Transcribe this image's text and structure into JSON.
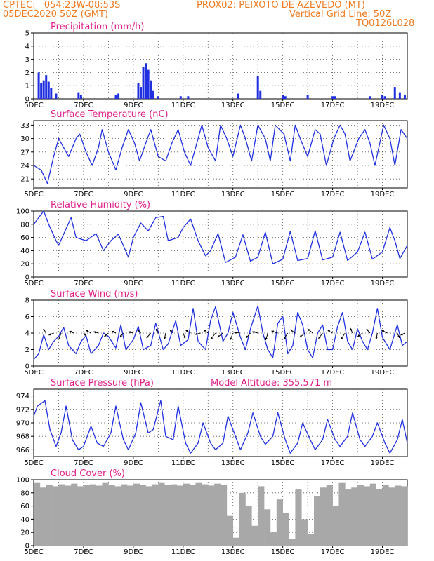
{
  "header": {
    "line1_left": "CPTEC:   054:23W-08:53S",
    "line1_right": "PROX02: PEIXOTO DE AZEVEDO (MT)",
    "line2_left": "05DEC2020 50Z (GMT)",
    "line2_right": "Vertical Grid Line: 50Z",
    "line3_right": "TQ0126L028"
  },
  "colors": {
    "header": "#f07a20",
    "title": "#e0208a",
    "line": "#2030e0",
    "cloud": "#a8a8a8",
    "bar": "#2030e0"
  },
  "chart_data": [
    {
      "type": "bar",
      "name": "precipitation",
      "title": "Precipitation (mm/h)",
      "ylim": [
        0,
        5
      ],
      "yticks": [
        0,
        1,
        2,
        3,
        4,
        5
      ],
      "xlim": [
        0,
        15
      ],
      "x_tick_positions": [
        0,
        2,
        4,
        6,
        8,
        10,
        12,
        14
      ],
      "x_tick_labels": [
        "5DEC",
        "7DEC",
        "9DEC",
        "11DEC",
        "13DEC",
        "15DEC",
        "17DEC",
        "19DEC"
      ],
      "x": [
        0.2,
        0.3,
        0.4,
        0.5,
        0.6,
        0.7,
        0.9,
        1.8,
        1.9,
        3.3,
        3.4,
        4.2,
        4.3,
        4.4,
        4.5,
        4.6,
        4.7,
        4.8,
        5.0,
        5.9,
        6.2,
        8.2,
        9.0,
        9.1,
        10.0,
        10.1,
        11.0,
        12.0,
        12.1,
        13.5,
        14.0,
        14.1,
        14.5,
        14.7,
        14.9
      ],
      "values": [
        2.0,
        1.2,
        1.4,
        1.8,
        1.3,
        0.8,
        0.4,
        0.5,
        0.3,
        0.3,
        0.4,
        1.2,
        0.9,
        2.4,
        2.7,
        2.2,
        1.4,
        0.6,
        0.2,
        0.2,
        0.2,
        0.4,
        1.7,
        0.6,
        0.3,
        0.2,
        0.3,
        0.2,
        0.2,
        0.2,
        0.3,
        0.2,
        0.9,
        0.5,
        0.3
      ]
    },
    {
      "type": "line",
      "name": "temperature",
      "title": "Surface Temperature (nC)",
      "ylim": [
        19,
        34
      ],
      "yticks": [
        21,
        24,
        27,
        30,
        33
      ],
      "xlim": [
        0,
        15
      ],
      "x_tick_positions": [
        0,
        2,
        4,
        6,
        8,
        10,
        12,
        14
      ],
      "x_tick_labels": [
        "5DEC",
        "7DEC",
        "9DEC",
        "11DEC",
        "13DEC",
        "15DEC",
        "17DEC",
        "19DEC"
      ],
      "x": [
        0,
        0.3,
        0.55,
        0.8,
        1.0,
        1.2,
        1.4,
        1.7,
        1.85,
        2.1,
        2.35,
        2.6,
        2.75,
        3.0,
        3.3,
        3.55,
        3.8,
        4.05,
        4.25,
        4.5,
        4.7,
        5.0,
        5.3,
        5.55,
        5.8,
        6.05,
        6.3,
        6.55,
        6.75,
        7.0,
        7.3,
        7.5,
        7.75,
        8.0,
        8.3,
        8.5,
        8.75,
        9.0,
        9.3,
        9.5,
        9.7,
        10.05,
        10.3,
        10.5,
        10.7,
        11.0,
        11.3,
        11.5,
        11.75,
        12.05,
        12.3,
        12.5,
        12.7,
        13.05,
        13.3,
        13.5,
        13.7,
        14.05,
        14.3,
        14.5,
        14.75,
        15.0
      ],
      "values": [
        24,
        23,
        20,
        26,
        30,
        28,
        26,
        30,
        31,
        27,
        24,
        28,
        32,
        27,
        23,
        28,
        32,
        29,
        25,
        29,
        32,
        26,
        25,
        29,
        32,
        27,
        24,
        29,
        33,
        28,
        25,
        33,
        30,
        26,
        33,
        30,
        25,
        33,
        30,
        25,
        33,
        31,
        25,
        33,
        30,
        26,
        32,
        31,
        24,
        30,
        33,
        31,
        25,
        30,
        32,
        29,
        24,
        33,
        30,
        24,
        32,
        30
      ]
    },
    {
      "type": "line",
      "name": "relative_humidity",
      "title": "Relative Humidity (%)",
      "ylim": [
        0,
        100
      ],
      "yticks": [
        0,
        20,
        40,
        60,
        80,
        100
      ],
      "xlim": [
        0,
        15
      ],
      "x_tick_positions": [
        0,
        2,
        4,
        6,
        8,
        10,
        12,
        14
      ],
      "x_tick_labels": [
        "5DEC",
        "7DEC",
        "9DEC",
        "11DEC",
        "13DEC",
        "15DEC",
        "17DEC",
        "19DEC"
      ],
      "x": [
        0,
        0.2,
        0.4,
        0.6,
        0.9,
        1.0,
        1.2,
        1.5,
        1.7,
        2.1,
        2.5,
        2.8,
        3.1,
        3.4,
        3.8,
        4.0,
        4.3,
        4.6,
        4.9,
        5.2,
        5.4,
        5.8,
        6.0,
        6.3,
        6.6,
        6.9,
        7.1,
        7.4,
        7.7,
        8.1,
        8.4,
        8.7,
        9.0,
        9.3,
        9.6,
        10.0,
        10.3,
        10.6,
        11.0,
        11.3,
        11.6,
        12.0,
        12.3,
        12.6,
        13.0,
        13.3,
        13.6,
        14.0,
        14.3,
        14.5,
        14.7,
        15.0
      ],
      "values": [
        80,
        90,
        100,
        80,
        55,
        48,
        65,
        90,
        60,
        55,
        66,
        40,
        55,
        65,
        30,
        60,
        82,
        70,
        90,
        92,
        55,
        60,
        75,
        88,
        55,
        32,
        40,
        66,
        22,
        30,
        64,
        24,
        30,
        68,
        20,
        27,
        69,
        25,
        28,
        70,
        26,
        30,
        68,
        25,
        38,
        68,
        27,
        38,
        75,
        55,
        28,
        48
      ]
    },
    {
      "type": "line",
      "name": "surface_wind",
      "title": "Surface Wind (m/s)",
      "ylim": [
        0,
        8
      ],
      "yticks": [
        0,
        2,
        4,
        6,
        8
      ],
      "xlim": [
        0,
        15
      ],
      "x_tick_positions": [
        0,
        2,
        4,
        6,
        8,
        10,
        12,
        14
      ],
      "x_tick_labels": [
        "5DEC",
        "7DEC",
        "9DEC",
        "11DEC",
        "13DEC",
        "15DEC",
        "17DEC",
        "19DEC"
      ],
      "x": [
        0,
        0.2,
        0.4,
        0.6,
        0.8,
        1.0,
        1.2,
        1.4,
        1.7,
        1.9,
        2.1,
        2.3,
        2.6,
        2.8,
        3.0,
        3.3,
        3.5,
        3.7,
        4.0,
        4.2,
        4.4,
        4.7,
        4.9,
        5.2,
        5.4,
        5.7,
        5.9,
        6.2,
        6.4,
        6.6,
        6.9,
        7.1,
        7.3,
        7.6,
        7.8,
        8.0,
        8.3,
        8.5,
        8.7,
        9.0,
        9.2,
        9.4,
        9.6,
        9.8,
        10.0,
        10.2,
        10.4,
        10.6,
        10.8,
        11.0,
        11.2,
        11.4,
        11.6,
        11.8,
        12.0,
        12.2,
        12.4,
        12.6,
        12.8,
        13.0,
        13.2,
        13.4,
        13.6,
        13.8,
        14.0,
        14.3,
        14.6,
        14.8,
        15.0
      ],
      "values": [
        0.8,
        1.5,
        3.8,
        2.0,
        3.0,
        3.6,
        4.7,
        2.5,
        1.5,
        3.0,
        3.7,
        1.5,
        2.5,
        4.0,
        3.6,
        2.2,
        5.0,
        2.0,
        3.2,
        4.8,
        2.0,
        2.5,
        5.2,
        2.0,
        2.7,
        5.5,
        2.5,
        3.2,
        7.0,
        3.0,
        2.0,
        5.5,
        7.2,
        3.0,
        4.0,
        6.5,
        3.5,
        2.0,
        4.5,
        7.3,
        4.0,
        2.0,
        1.0,
        5.2,
        6.0,
        1.5,
        2.5,
        6.5,
        5.0,
        2.0,
        1.0,
        4.0,
        5.0,
        2.0,
        2.0,
        4.8,
        6.5,
        3.0,
        2.0,
        4.5,
        3.0,
        2.0,
        4.0,
        7.0,
        3.5,
        2.0,
        5.0,
        2.5,
        3.0
      ],
      "arrows": [
        {
          "x": 0.5,
          "u": -0.4,
          "v": 0.6
        },
        {
          "x": 0.8,
          "u": -0.7,
          "v": -0.3
        },
        {
          "x": 1.1,
          "u": -0.3,
          "v": -0.8
        },
        {
          "x": 1.6,
          "u": -0.6,
          "v": 0.3
        },
        {
          "x": 2.0,
          "u": 0.4,
          "v": -0.4
        },
        {
          "x": 2.3,
          "u": -0.7,
          "v": 0.4
        },
        {
          "x": 2.6,
          "u": -0.7,
          "v": 0.2
        },
        {
          "x": 3.0,
          "u": -0.6,
          "v": -0.5
        },
        {
          "x": 3.3,
          "u": -0.6,
          "v": 0.3
        },
        {
          "x": 3.6,
          "u": -0.5,
          "v": -0.6
        },
        {
          "x": 4.0,
          "u": -0.7,
          "v": 0.2
        },
        {
          "x": 4.3,
          "u": -0.5,
          "v": 0.5
        },
        {
          "x": 4.7,
          "u": -0.6,
          "v": -0.7
        },
        {
          "x": 5.0,
          "u": -0.3,
          "v": 0.6
        },
        {
          "x": 5.3,
          "u": -0.2,
          "v": -0.9
        },
        {
          "x": 5.6,
          "u": -0.5,
          "v": 0.5
        },
        {
          "x": 6.0,
          "u": 0.3,
          "v": -0.8
        },
        {
          "x": 6.3,
          "u": -0.7,
          "v": 0.4
        },
        {
          "x": 6.7,
          "u": -0.8,
          "v": -0.2
        },
        {
          "x": 7.0,
          "u": -0.6,
          "v": 0.5
        },
        {
          "x": 7.3,
          "u": -0.7,
          "v": -0.9
        },
        {
          "x": 7.6,
          "u": -0.8,
          "v": -0.6
        },
        {
          "x": 8.0,
          "u": -0.4,
          "v": -1.0
        },
        {
          "x": 8.3,
          "u": -0.9,
          "v": 0.1
        },
        {
          "x": 8.7,
          "u": -0.6,
          "v": -0.7
        },
        {
          "x": 9.0,
          "u": -0.8,
          "v": 0.2
        },
        {
          "x": 9.4,
          "u": -0.3,
          "v": -1.0
        },
        {
          "x": 9.8,
          "u": -0.9,
          "v": 0.3
        },
        {
          "x": 10.2,
          "u": -0.6,
          "v": -0.9
        },
        {
          "x": 10.5,
          "u": -0.7,
          "v": 0.5
        },
        {
          "x": 10.9,
          "u": -0.8,
          "v": -0.6
        },
        {
          "x": 11.2,
          "u": -0.7,
          "v": 0.6
        },
        {
          "x": 11.6,
          "u": -0.6,
          "v": -0.8
        },
        {
          "x": 12.0,
          "u": -0.7,
          "v": 0.4
        },
        {
          "x": 12.5,
          "u": -0.6,
          "v": -0.9
        },
        {
          "x": 12.8,
          "u": -0.3,
          "v": 0.7
        },
        {
          "x": 13.2,
          "u": -0.7,
          "v": -0.5
        },
        {
          "x": 13.5,
          "u": -0.5,
          "v": 0.6
        },
        {
          "x": 13.8,
          "u": -0.2,
          "v": -0.9
        },
        {
          "x": 14.2,
          "u": -0.8,
          "v": 0.4
        },
        {
          "x": 14.6,
          "u": 0.3,
          "v": -0.7
        },
        {
          "x": 14.9,
          "u": -0.6,
          "v": -0.3
        }
      ]
    },
    {
      "type": "line",
      "name": "surface_pressure",
      "title": "Surface Pressure (hPa)",
      "annotation": "Model Altitude: 355.571  m",
      "ylim": [
        965,
        975
      ],
      "yticks": [
        966,
        968,
        970,
        972,
        974
      ],
      "xlim": [
        0,
        15
      ],
      "x_tick_positions": [
        0,
        2,
        4,
        6,
        8,
        10,
        12,
        14
      ],
      "x_tick_labels": [
        "5DEC",
        "7DEC",
        "9DEC",
        "11DEC",
        "13DEC",
        "15DEC",
        "17DEC",
        "19DEC"
      ],
      "x": [
        0,
        0.15,
        0.45,
        0.65,
        0.9,
        1.1,
        1.3,
        1.55,
        1.8,
        2.0,
        2.3,
        2.55,
        2.8,
        3.1,
        3.3,
        3.6,
        3.8,
        4.1,
        4.3,
        4.6,
        4.8,
        5.1,
        5.3,
        5.6,
        5.8,
        6.1,
        6.3,
        6.6,
        6.8,
        7.1,
        7.3,
        7.6,
        7.8,
        8.1,
        8.3,
        8.6,
        8.8,
        9.1,
        9.3,
        9.6,
        9.8,
        10.1,
        10.3,
        10.6,
        10.8,
        11.1,
        11.3,
        11.6,
        11.8,
        12.1,
        12.3,
        12.6,
        12.8,
        13.1,
        13.3,
        13.6,
        13.8,
        14.1,
        14.3,
        14.6,
        14.8,
        15.0
      ],
      "values": [
        971,
        972.5,
        973.3,
        969,
        966.5,
        968.5,
        972.5,
        967.5,
        966,
        966.5,
        969.5,
        967,
        966.5,
        968.5,
        972.5,
        967.5,
        966,
        968.5,
        973,
        968.5,
        969,
        973.3,
        968,
        967.5,
        972.5,
        967,
        965.5,
        967,
        970,
        967,
        966,
        967,
        971,
        968,
        966,
        968.5,
        971.5,
        968,
        966.8,
        968,
        971.5,
        967.5,
        965.5,
        967,
        970,
        967.5,
        966,
        967.5,
        970.5,
        967.5,
        966.5,
        968,
        971.5,
        967.5,
        966.5,
        968,
        970,
        967,
        965.5,
        967.5,
        970.5,
        967
      ]
    },
    {
      "type": "bar",
      "name": "cloud_cover",
      "title": "Cloud Cover (%)",
      "ylim": [
        0,
        100
      ],
      "yticks": [
        0,
        20,
        40,
        60,
        80,
        100
      ],
      "xlim": [
        0,
        15
      ],
      "x_tick_positions": [
        0,
        2,
        4,
        6,
        8,
        10,
        12,
        14
      ],
      "x_tick_labels": [
        "5DEC",
        "7DEC",
        "9DEC",
        "11DEC",
        "13DEC",
        "15DEC",
        "17DEC",
        "19DEC"
      ],
      "x": [
        0.0,
        0.25,
        0.5,
        0.75,
        1.0,
        1.25,
        1.5,
        1.75,
        2.0,
        2.25,
        2.5,
        2.75,
        3.0,
        3.25,
        3.5,
        3.75,
        4.0,
        4.25,
        4.5,
        4.75,
        5.0,
        5.25,
        5.5,
        5.75,
        6.0,
        6.25,
        6.5,
        6.75,
        7.0,
        7.25,
        7.5,
        7.75,
        8.0,
        8.25,
        8.5,
        8.75,
        9.0,
        9.25,
        9.5,
        9.75,
        10.0,
        10.25,
        10.5,
        10.75,
        11.0,
        11.25,
        11.5,
        11.75,
        12.0,
        12.25,
        12.5,
        12.75,
        13.0,
        13.25,
        13.5,
        13.75,
        14.0,
        14.25,
        14.5,
        14.75
      ],
      "values": [
        95,
        88,
        92,
        90,
        93,
        91,
        94,
        90,
        92,
        93,
        91,
        95,
        92,
        90,
        93,
        91,
        94,
        92,
        90,
        93,
        95,
        92,
        93,
        91,
        94,
        92,
        95,
        93,
        91,
        94,
        92,
        45,
        12,
        80,
        60,
        30,
        90,
        55,
        20,
        70,
        50,
        10,
        85,
        40,
        18,
        75,
        88,
        92,
        60,
        95,
        85,
        88,
        92,
        90,
        94,
        86,
        92,
        88,
        91,
        90
      ]
    }
  ]
}
